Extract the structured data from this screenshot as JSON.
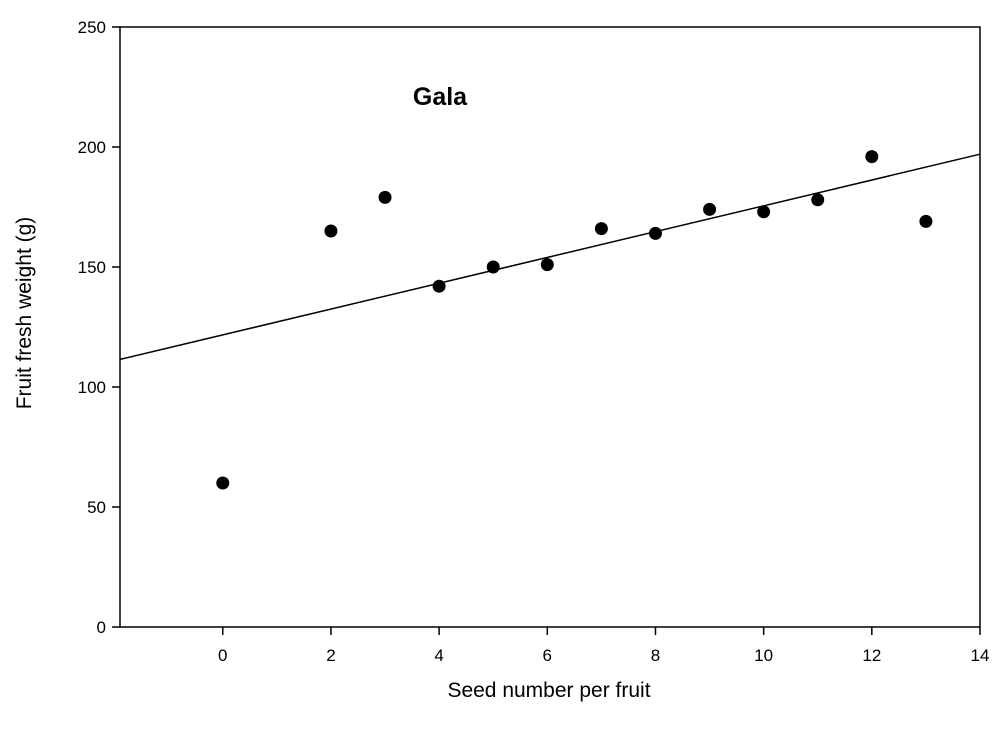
{
  "chart_data": {
    "type": "scatter",
    "annotation": "Gala",
    "xlabel": "Seed number per fruit",
    "ylabel": "Fruit fresh weight (g)",
    "xlim": [
      -1.9,
      14
    ],
    "ylim": [
      0,
      250
    ],
    "xticks": [
      0,
      2,
      4,
      6,
      8,
      10,
      12,
      14
    ],
    "yticks": [
      0,
      50,
      100,
      150,
      200,
      250
    ],
    "grid": false,
    "colors": {
      "marker": "#000000",
      "line": "#000000",
      "axis": "#000000"
    },
    "points": [
      {
        "x": 0,
        "y": 60
      },
      {
        "x": 2,
        "y": 165
      },
      {
        "x": 3,
        "y": 179
      },
      {
        "x": 4,
        "y": 142
      },
      {
        "x": 5,
        "y": 150
      },
      {
        "x": 6,
        "y": 151
      },
      {
        "x": 7,
        "y": 166
      },
      {
        "x": 8,
        "y": 164
      },
      {
        "x": 9,
        "y": 174
      },
      {
        "x": 10,
        "y": 173
      },
      {
        "x": 11,
        "y": 178
      },
      {
        "x": 12,
        "y": 196
      },
      {
        "x": 13,
        "y": 169
      }
    ],
    "fit_line": {
      "type": "linear",
      "x": [
        -1.9,
        14
      ],
      "y": [
        111.5,
        197
      ]
    }
  }
}
